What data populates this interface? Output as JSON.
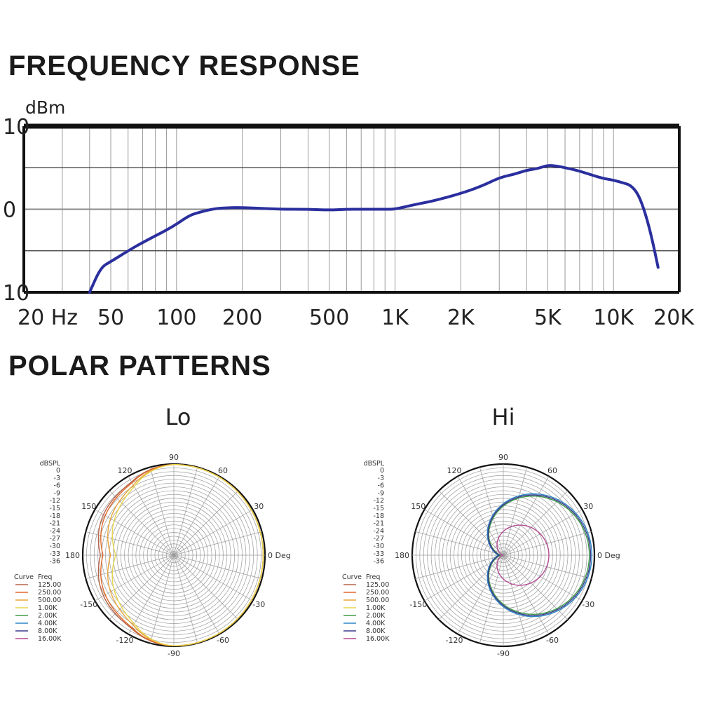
{
  "sections": {
    "frequency_title": "FREQUENCY RESPONSE",
    "polar_title": "POLAR PATTERNS"
  },
  "chart_data": [
    {
      "type": "line",
      "title": "FREQUENCY RESPONSE",
      "ylabel": "dBm",
      "xscale": "log",
      "ylim": [
        -10,
        10
      ],
      "xlim": [
        20,
        20000
      ],
      "y_ticks": [
        {
          "value": 10,
          "label": "10"
        },
        {
          "value": 0,
          "label": "0"
        },
        {
          "value": -10,
          "label": "10"
        }
      ],
      "x_ticks": [
        {
          "value": 20,
          "label": "20 Hz"
        },
        {
          "value": 50,
          "label": "50"
        },
        {
          "value": 100,
          "label": "100"
        },
        {
          "value": 200,
          "label": "200"
        },
        {
          "value": 500,
          "label": "500"
        },
        {
          "value": 1000,
          "label": "1K"
        },
        {
          "value": 2000,
          "label": "2K"
        },
        {
          "value": 5000,
          "label": "5K"
        },
        {
          "value": 10000,
          "label": "10K"
        },
        {
          "value": 20000,
          "label": "20K"
        }
      ],
      "grid": true,
      "series": [
        {
          "color": "#2b2f9e",
          "x": [
            40,
            45,
            50,
            60,
            70,
            80,
            90,
            100,
            115,
            130,
            150,
            180,
            200,
            250,
            300,
            400,
            500,
            600,
            700,
            800,
            900,
            1000,
            1200,
            1500,
            2000,
            2500,
            3000,
            3500,
            4000,
            4500,
            5000,
            5500,
            6000,
            7000,
            8000,
            9000,
            10000,
            11000,
            12000,
            13000,
            14000,
            15000,
            16000
          ],
          "y": [
            -10,
            -7,
            -6.3,
            -5,
            -4,
            -3.2,
            -2.5,
            -1.8,
            -0.7,
            -0.3,
            0.1,
            0.2,
            0.2,
            0.1,
            0,
            0,
            -0.1,
            0,
            0,
            0,
            0,
            0,
            0.5,
            1,
            1.9,
            2.8,
            3.8,
            4.2,
            4.7,
            4.9,
            5.3,
            5.2,
            5,
            4.6,
            4.1,
            3.7,
            3.5,
            3.2,
            2.9,
            1.8,
            -0.5,
            -3.5,
            -7
          ]
        }
      ]
    },
    {
      "type": "polar",
      "title": "Lo",
      "ylabel": "dBSPL",
      "angle_labels": [
        "0 Deg",
        "30",
        "60",
        "90",
        "120",
        "150",
        "180",
        "-150",
        "-120",
        "-90",
        "-60",
        "-30"
      ],
      "radial_ticks": [
        "0",
        "-3",
        "-6",
        "-9",
        "-12",
        "-15",
        "-18",
        "-21",
        "-24",
        "-27",
        "-30",
        "-33",
        "-36"
      ],
      "legend_header": [
        "Curve",
        "Freq"
      ],
      "series": [
        {
          "name": "125.00",
          "color": "#b5654a",
          "back_db": -7
        },
        {
          "name": "250.00",
          "color": "#e06a2a",
          "back_db": -8
        },
        {
          "name": "500.00",
          "color": "#e8a53a",
          "back_db": -11
        },
        {
          "name": "1.00K",
          "color": "#e9d54a",
          "back_db": -13
        },
        {
          "name": "2.00K",
          "color": "#3f9a48",
          "back_db": null
        },
        {
          "name": "4.00K",
          "color": "#2f86c7",
          "back_db": null
        },
        {
          "name": "8.00K",
          "color": "#3c3a8c",
          "back_db": null
        },
        {
          "name": "16.00K",
          "color": "#b34a93",
          "back_db": null
        }
      ]
    },
    {
      "type": "polar",
      "title": "Hi",
      "ylabel": "dBSPL",
      "angle_labels": [
        "0 Deg",
        "30",
        "60",
        "90",
        "120",
        "150",
        "180",
        "-150",
        "-120",
        "-90",
        "-60",
        "-30"
      ],
      "radial_ticks": [
        "0",
        "-3",
        "-6",
        "-9",
        "-12",
        "-15",
        "-18",
        "-21",
        "-24",
        "-27",
        "-30",
        "-33",
        "-36"
      ],
      "legend_header": [
        "Curve",
        "Freq"
      ],
      "series": [
        {
          "name": "125.00",
          "color": "#b5654a",
          "front_db": null
        },
        {
          "name": "250.00",
          "color": "#e06a2a",
          "front_db": null
        },
        {
          "name": "500.00",
          "color": "#e8a53a",
          "front_db": null
        },
        {
          "name": "1.00K",
          "color": "#e9d54a",
          "front_db": null
        },
        {
          "name": "2.00K",
          "color": "#3f9a48",
          "front_db": -2
        },
        {
          "name": "4.00K",
          "color": "#2f86c7",
          "front_db": -1
        },
        {
          "name": "8.00K",
          "color": "#3c3a8c",
          "front_db": -1.5
        },
        {
          "name": "16.00K",
          "color": "#b34a93",
          "front_db": -18
        }
      ]
    }
  ]
}
